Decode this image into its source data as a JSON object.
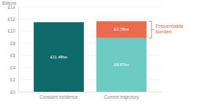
{
  "chart_data": {
    "type": "bar",
    "stacked": true,
    "data_labels": true,
    "grid": true,
    "y_label": "Billions",
    "categories": [
      "Constant incidence",
      "Current trajectory"
    ],
    "series": [
      {
        "colors": [
          "#0f6b6a",
          "#6ccbc3"
        ],
        "values": [
          11.48,
          8.87
        ],
        "value_labels": [
          "£11.48bn",
          "£8.87bn"
        ]
      },
      {
        "color": "#ea6b4e",
        "values": [
          null,
          2.78
        ],
        "value_labels": [
          null,
          "£2.78bn"
        ]
      }
    ],
    "ylim": [
      0,
      14
    ],
    "yticks": [
      {
        "value": 0,
        "label": "£0"
      },
      {
        "value": 2,
        "label": "£2"
      },
      {
        "value": 4,
        "label": "£4"
      },
      {
        "value": 6,
        "label": "£6"
      },
      {
        "value": 8,
        "label": "£8"
      },
      {
        "value": 10,
        "label": "£10"
      },
      {
        "value": 12,
        "label": "£12"
      },
      {
        "value": 14,
        "label": "£14"
      }
    ],
    "annotation": "Preventable burden"
  }
}
